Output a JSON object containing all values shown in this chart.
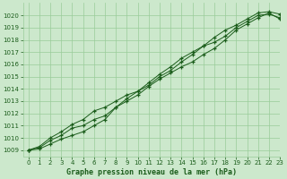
{
  "title": "Graphe pression niveau de la mer (hPa)",
  "xlim": [
    -0.5,
    23
  ],
  "ylim": [
    1008.5,
    1021.0
  ],
  "xticks": [
    0,
    1,
    2,
    3,
    4,
    5,
    6,
    7,
    8,
    9,
    10,
    11,
    12,
    13,
    14,
    15,
    16,
    17,
    18,
    19,
    20,
    21,
    22,
    23
  ],
  "yticks": [
    1009,
    1010,
    1011,
    1012,
    1013,
    1014,
    1015,
    1016,
    1017,
    1018,
    1019,
    1020
  ],
  "bg_color": "#cce8cc",
  "grid_color": "#99cc99",
  "line_color": "#1a5c1a",
  "line1_x": [
    0,
    1,
    2,
    3,
    4,
    5,
    6,
    7,
    8,
    9,
    10,
    11,
    12,
    13,
    14,
    15,
    16,
    17,
    18,
    19,
    20,
    21,
    22,
    23
  ],
  "line1_y": [
    1009.0,
    1009.3,
    1010.0,
    1010.5,
    1011.1,
    1011.5,
    1012.2,
    1012.5,
    1013.0,
    1013.5,
    1013.8,
    1014.5,
    1015.2,
    1015.8,
    1016.5,
    1017.0,
    1017.5,
    1017.8,
    1018.3,
    1019.0,
    1019.5,
    1020.0,
    1020.1,
    1019.8
  ],
  "line2_x": [
    0,
    1,
    2,
    3,
    4,
    5,
    6,
    7,
    8,
    9,
    10,
    11,
    12,
    13,
    14,
    15,
    16,
    17,
    18,
    19,
    20,
    21,
    22,
    23
  ],
  "line2_y": [
    1009.0,
    1009.2,
    1009.8,
    1010.2,
    1010.8,
    1011.0,
    1011.5,
    1011.8,
    1012.5,
    1013.0,
    1013.5,
    1014.2,
    1014.8,
    1015.3,
    1015.8,
    1016.2,
    1016.8,
    1017.3,
    1018.0,
    1018.8,
    1019.3,
    1019.8,
    1020.2,
    1019.7
  ],
  "line3_x": [
    0,
    1,
    2,
    3,
    4,
    5,
    6,
    7,
    8,
    9,
    10,
    11,
    12,
    13,
    14,
    15,
    16,
    17,
    18,
    19,
    20,
    21,
    22,
    23
  ],
  "line3_y": [
    1009.0,
    1009.1,
    1009.5,
    1009.9,
    1010.2,
    1010.5,
    1011.0,
    1011.5,
    1012.5,
    1013.2,
    1013.8,
    1014.3,
    1015.0,
    1015.5,
    1016.2,
    1016.8,
    1017.5,
    1018.2,
    1018.8,
    1019.2,
    1019.7,
    1020.2,
    1020.3,
    1020.1
  ]
}
